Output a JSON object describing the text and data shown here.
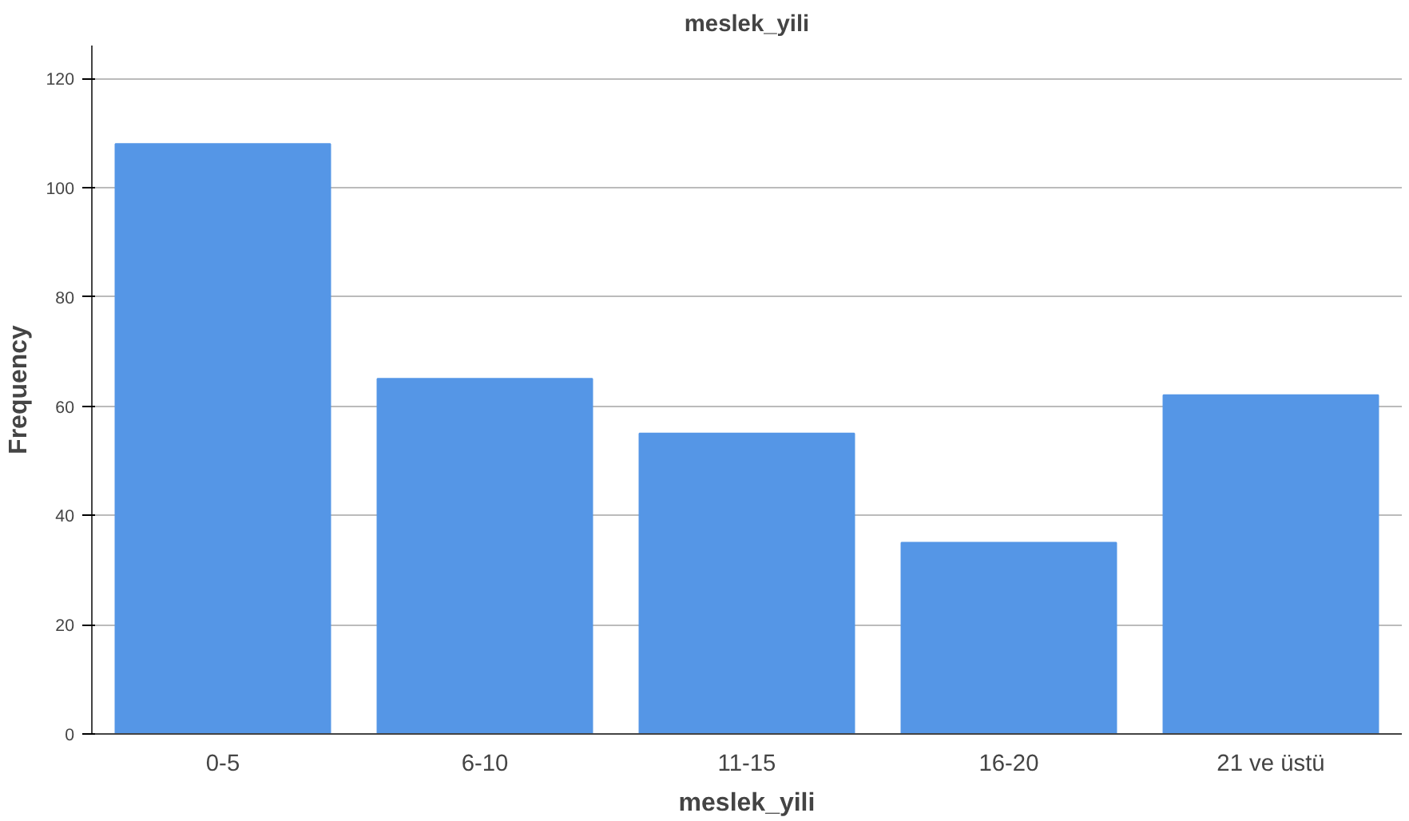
{
  "chart_data": {
    "type": "bar",
    "title": "meslek_yili",
    "xlabel": "meslek_yili",
    "ylabel": "Frequency",
    "categories": [
      "0-5",
      "6-10",
      "11-15",
      "16-20",
      "21 ve üstü"
    ],
    "values": [
      108,
      65,
      55,
      35,
      62
    ],
    "color": "#5596e6",
    "ylim": [
      0,
      126
    ],
    "yticks": [
      0,
      20,
      40,
      60,
      80,
      100,
      120
    ],
    "grid": "y"
  }
}
